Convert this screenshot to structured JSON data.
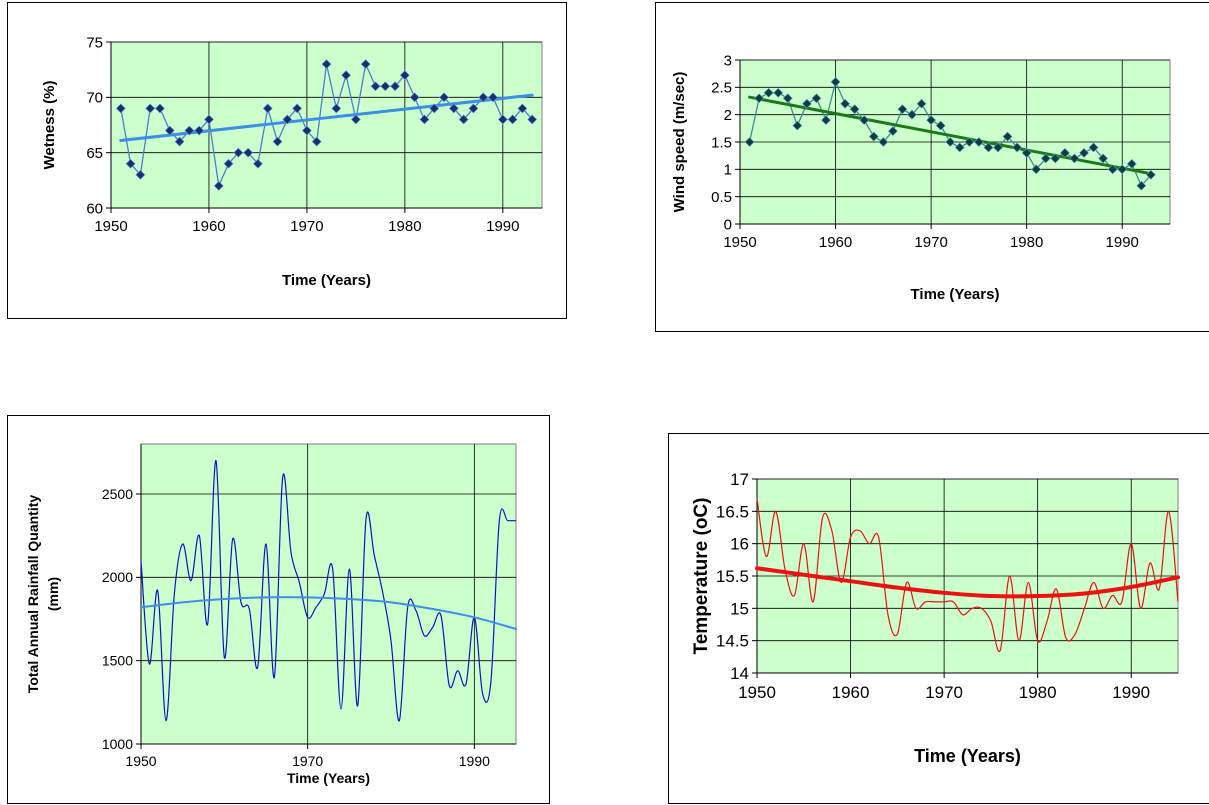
{
  "colors": {
    "plot_bg": "#ccffcc",
    "grid": "#000000",
    "wetness_line": "#4a7fd0",
    "wetness_marker": "#1a2e6e",
    "wetness_trend": "#3b8fe6",
    "wind_line": "#3a8f8a",
    "wind_marker": "#0f3d3a",
    "wind_trend": "#1a7a1a",
    "rain_line": "#1010cc",
    "rain_trend": "#3b8fe6",
    "temp_line": "#ee1111",
    "temp_trend": "#ee1111"
  },
  "chart_data": [
    {
      "type": "line",
      "title": "",
      "xlabel": "Time (Years)",
      "ylabel": "Wetness (%)",
      "xlim": [
        1950,
        1994
      ],
      "ylim": [
        60,
        75
      ],
      "xticks": [
        1950,
        1960,
        1970,
        1980,
        1990
      ],
      "yticks": [
        60,
        65,
        70,
        75
      ],
      "grid": true,
      "legend": "none",
      "markers": true,
      "x": [
        1951,
        1952,
        1953,
        1954,
        1955,
        1956,
        1957,
        1958,
        1959,
        1960,
        1961,
        1962,
        1963,
        1964,
        1965,
        1966,
        1967,
        1968,
        1969,
        1970,
        1971,
        1972,
        1973,
        1974,
        1975,
        1976,
        1977,
        1978,
        1979,
        1980,
        1981,
        1982,
        1983,
        1984,
        1985,
        1986,
        1987,
        1988,
        1989,
        1990,
        1991,
        1992,
        1993
      ],
      "y": [
        69,
        64,
        63,
        69,
        69,
        67,
        66,
        67,
        67,
        68,
        62,
        64,
        65,
        65,
        64,
        69,
        66,
        68,
        69,
        67,
        66,
        73,
        69,
        72,
        68,
        73,
        71,
        71,
        71,
        72,
        70,
        68,
        69,
        70,
        69,
        68,
        69,
        70,
        70,
        68,
        68,
        69,
        68
      ],
      "trend": {
        "x": [
          1951,
          1993
        ],
        "y": [
          66.1,
          70.2
        ]
      }
    },
    {
      "type": "line",
      "title": "",
      "xlabel": "Time (Years)",
      "ylabel": "Wind speed (m/sec)",
      "xlim": [
        1950,
        1995
      ],
      "ylim": [
        0,
        3
      ],
      "xticks": [
        1950,
        1960,
        1970,
        1980,
        1990
      ],
      "yticks": [
        0,
        0.5,
        1,
        1.5,
        2,
        2.5,
        3
      ],
      "grid": true,
      "legend": "none",
      "markers": true,
      "x": [
        1951,
        1952,
        1953,
        1954,
        1955,
        1956,
        1957,
        1958,
        1959,
        1960,
        1961,
        1962,
        1963,
        1964,
        1965,
        1966,
        1967,
        1968,
        1969,
        1970,
        1971,
        1972,
        1973,
        1974,
        1975,
        1976,
        1977,
        1978,
        1979,
        1980,
        1981,
        1982,
        1983,
        1984,
        1985,
        1986,
        1987,
        1988,
        1989,
        1990,
        1991,
        1992,
        1993
      ],
      "y": [
        1.5,
        2.3,
        2.4,
        2.4,
        2.3,
        1.8,
        2.2,
        2.3,
        1.9,
        2.6,
        2.2,
        2.1,
        1.9,
        1.6,
        1.5,
        1.7,
        2.1,
        2.0,
        2.2,
        1.9,
        1.8,
        1.5,
        1.4,
        1.5,
        1.5,
        1.4,
        1.4,
        1.6,
        1.4,
        1.3,
        1.0,
        1.2,
        1.2,
        1.3,
        1.2,
        1.3,
        1.4,
        1.2,
        1.0,
        1.0,
        1.1,
        0.7,
        0.9
      ],
      "trend": {
        "x": [
          1951,
          1993
        ],
        "y": [
          2.32,
          0.92
        ]
      }
    },
    {
      "type": "line",
      "title": "",
      "xlabel": "Time  (Years)",
      "ylabel": "Total Annual  Rainfall  Quantity (mm)",
      "ylabel_lines": [
        "Total Annual  Rainfall  Quantity",
        "(mm)"
      ],
      "xlim": [
        1950,
        1995
      ],
      "ylim": [
        1000,
        2800
      ],
      "xticks": [
        1950,
        1970,
        1990
      ],
      "yticks": [
        1000,
        1500,
        2000,
        2500
      ],
      "grid": true,
      "legend": "none",
      "markers": false,
      "x": [
        1950,
        1951,
        1952,
        1953,
        1954,
        1955,
        1956,
        1957,
        1958,
        1959,
        1960,
        1961,
        1962,
        1963,
        1964,
        1965,
        1966,
        1967,
        1968,
        1969,
        1970,
        1971,
        1972,
        1973,
        1974,
        1975,
        1976,
        1977,
        1978,
        1979,
        1980,
        1981,
        1982,
        1983,
        1984,
        1985,
        1986,
        1987,
        1988,
        1989,
        1990,
        1991,
        1992,
        1993,
        1994,
        1995
      ],
      "y": [
        2100,
        1480,
        1920,
        1140,
        1900,
        2200,
        1980,
        2250,
        1720,
        2700,
        1520,
        2230,
        1850,
        1810,
        1460,
        2200,
        1400,
        2600,
        2150,
        1970,
        1760,
        1820,
        1900,
        2050,
        1210,
        2050,
        1230,
        2350,
        2130,
        1910,
        1620,
        1140,
        1820,
        1800,
        1650,
        1700,
        1770,
        1350,
        1440,
        1360,
        1760,
        1300,
        1380,
        2340,
        2340,
        2340
      ],
      "trend": {
        "x": [
          1950,
          1955,
          1960,
          1965,
          1970,
          1975,
          1980,
          1985,
          1990,
          1995
        ],
        "y": [
          1820,
          1850,
          1870,
          1880,
          1880,
          1870,
          1850,
          1810,
          1760,
          1690
        ]
      }
    },
    {
      "type": "line",
      "title": "",
      "xlabel": "Time (Years)",
      "ylabel": "Temperature (oC)",
      "xlim": [
        1950,
        1995
      ],
      "ylim": [
        14,
        17
      ],
      "xticks": [
        1950,
        1960,
        1970,
        1980,
        1990
      ],
      "yticks": [
        14,
        14.5,
        15,
        15.5,
        16,
        16.5,
        17
      ],
      "grid": true,
      "legend": "none",
      "markers": false,
      "x": [
        1950,
        1951,
        1952,
        1953,
        1954,
        1955,
        1956,
        1957,
        1958,
        1959,
        1960,
        1961,
        1962,
        1963,
        1964,
        1965,
        1966,
        1967,
        1968,
        1969,
        1970,
        1971,
        1972,
        1973,
        1974,
        1975,
        1976,
        1977,
        1978,
        1979,
        1980,
        1981,
        1982,
        1983,
        1984,
        1985,
        1986,
        1987,
        1988,
        1989,
        1990,
        1991,
        1992,
        1993,
        1994,
        1995
      ],
      "y": [
        16.7,
        15.8,
        16.5,
        15.6,
        15.2,
        16.0,
        15.1,
        16.4,
        16.2,
        15.4,
        16.1,
        16.2,
        16.0,
        16.1,
        14.9,
        14.6,
        15.4,
        15.0,
        15.1,
        15.1,
        15.1,
        15.1,
        14.9,
        15.0,
        15.0,
        14.8,
        14.35,
        15.5,
        14.5,
        15.4,
        14.5,
        14.8,
        15.3,
        14.55,
        14.6,
        15.0,
        15.4,
        15.0,
        15.2,
        15.1,
        16.0,
        15.0,
        15.7,
        15.3,
        16.5,
        15.1
      ],
      "trend": {
        "x": [
          1950,
          1955,
          1960,
          1965,
          1970,
          1975,
          1980,
          1985,
          1990,
          1995
        ],
        "y": [
          15.62,
          15.52,
          15.42,
          15.32,
          15.24,
          15.19,
          15.19,
          15.23,
          15.33,
          15.48
        ]
      }
    }
  ]
}
